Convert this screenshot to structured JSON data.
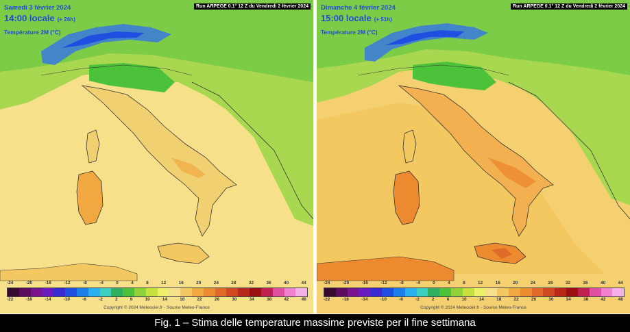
{
  "panels": [
    {
      "run_label": "Run ARPEGE 0.1° 12 Z du Vendredi 2 février 2024",
      "date": "Samedi 3 février 2024",
      "time": "14:00 locale",
      "offset": "(+ 26h)",
      "parameter": "Température 2M (°C)",
      "copyright": "Copyright © 2024 Meteociel.fr - Source Meteo-France"
    },
    {
      "run_label": "Run ARPEGE 0.1° 12 Z du Vendredi 2 février 2024",
      "date": "Dimanche 4 février 2024",
      "time": "15:00 locale",
      "offset": "(+ 51h)",
      "parameter": "Température 2M (°C)",
      "copyright": "Copyright © 2024 Meteociel.fr - Source Meteo-France"
    }
  ],
  "scale": {
    "top_labels": [
      "-24",
      "-20",
      "-16",
      "-12",
      "-8",
      "-4",
      "0",
      "4",
      "8",
      "12",
      "16",
      "20",
      "24",
      "28",
      "32",
      "36",
      "40",
      "44"
    ],
    "bottom_labels": [
      "-22",
      "-18",
      "-14",
      "-10",
      "-6",
      "-2",
      "2",
      "6",
      "10",
      "14",
      "18",
      "22",
      "26",
      "30",
      "34",
      "38",
      "42",
      "46"
    ],
    "colors": [
      "#3a0a2e",
      "#5c0d5e",
      "#7a1390",
      "#6a1bc0",
      "#3a2bd0",
      "#1f4fe0",
      "#1a7fe8",
      "#2ab0f0",
      "#3cd0c0",
      "#2fb060",
      "#4cc23a",
      "#8fd23a",
      "#c8e040",
      "#eef06a",
      "#f6e08a",
      "#f4c860",
      "#f2a840",
      "#ec8a30",
      "#e06a28",
      "#d04820",
      "#b82818",
      "#9a1010",
      "#c02050",
      "#e050a0",
      "#f080d0",
      "#f4b0e8"
    ]
  },
  "caption": "Fig. 1 – Stima delle temperature massime previste per il fine settimana"
}
